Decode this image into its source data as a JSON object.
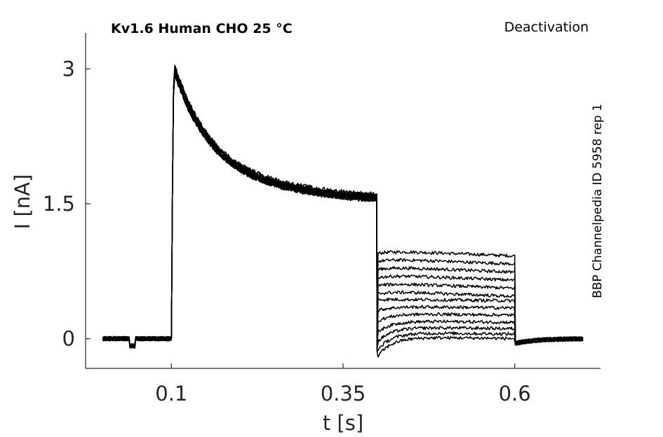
{
  "chart_data": {
    "type": "line",
    "title": "Kv1.6  Human  CHO  25 °C",
    "protocol": "Deactivation",
    "source": "BBP Channelpedia ID 5958 rep 1",
    "xlabel": "t [s]",
    "ylabel": "I [nA]",
    "xlim": [
      -0.025,
      0.725
    ],
    "ylim": [
      -0.33,
      3.4
    ],
    "xticks": [
      0.1,
      0.35,
      0.6
    ],
    "xtick_labels": [
      "0.1",
      "0.35",
      "0.6"
    ],
    "yticks": [
      0,
      1.5,
      3
    ],
    "ytick_labels": [
      "0",
      "1.5",
      "3"
    ],
    "grid": false,
    "legend": "none",
    "line_color": "#000000",
    "series": [
      {
        "peak": 3.01,
        "plateau": 1.48,
        "tail": 0.98
      },
      {
        "peak": 2.98,
        "plateau": 1.5,
        "tail": 0.89
      },
      {
        "peak": 2.95,
        "plateau": 1.47,
        "tail": 0.8
      },
      {
        "peak": 3.03,
        "plateau": 1.52,
        "tail": 0.71
      },
      {
        "peak": 2.96,
        "plateau": 1.49,
        "tail": 0.62
      },
      {
        "peak": 2.99,
        "plateau": 1.46,
        "tail": 0.53
      },
      {
        "peak": 3.02,
        "plateau": 1.51,
        "tail": 0.44
      },
      {
        "peak": 2.94,
        "plateau": 1.48,
        "tail": 0.36
      },
      {
        "peak": 3.0,
        "plateau": 1.5,
        "tail": 0.28
      },
      {
        "peak": 2.97,
        "plateau": 1.47,
        "tail": 0.2
      },
      {
        "peak": 3.04,
        "plateau": 1.53,
        "tail": 0.13
      },
      {
        "peak": 2.93,
        "plateau": 1.49,
        "tail": 0.07
      },
      {
        "peak": 3.01,
        "plateau": 1.51,
        "tail": 0.02
      }
    ]
  }
}
